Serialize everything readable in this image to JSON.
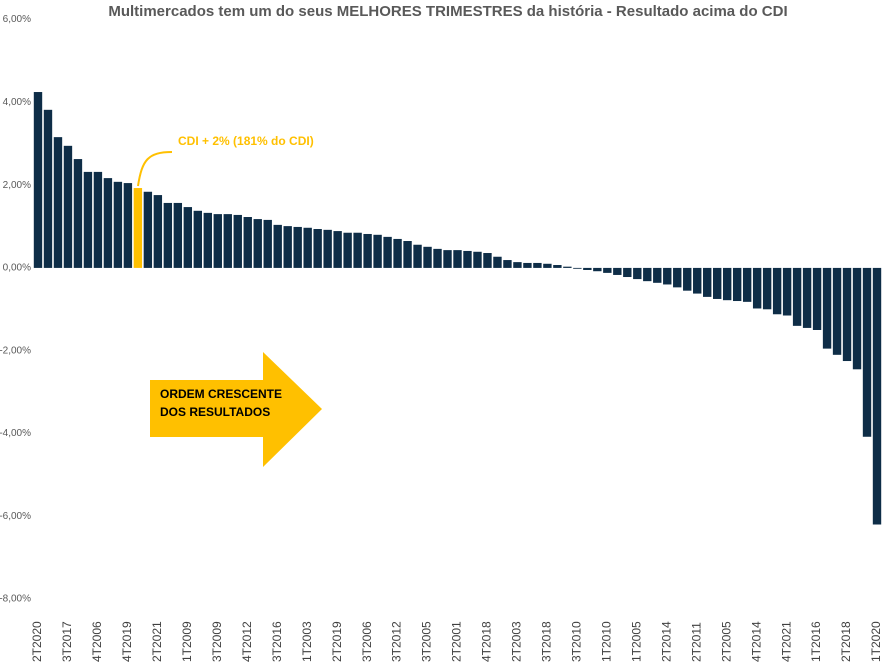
{
  "chart_data": {
    "type": "bar",
    "title": "Multimercados tem um do seus MELHORES TRIMESTRES  da história - Resultado acima do CDI",
    "categories": [
      "2T2020",
      null,
      null,
      "3T2017",
      null,
      null,
      "4T2006",
      null,
      null,
      "4T2019",
      null,
      null,
      "2T2021",
      null,
      null,
      "1T2009",
      null,
      null,
      "3T2009",
      null,
      null,
      "4T2012",
      null,
      null,
      "3T2016",
      null,
      null,
      "1T2003",
      null,
      null,
      "2T2019",
      null,
      null,
      "3T2006",
      null,
      null,
      "3T2012",
      null,
      null,
      "3T2005",
      null,
      null,
      "2T2001",
      null,
      null,
      "4T2018",
      null,
      null,
      "2T2003",
      null,
      null,
      "3T2018",
      null,
      null,
      "3T2010",
      null,
      null,
      "1T2010",
      null,
      null,
      "1T2005",
      null,
      null,
      "2T2014",
      null,
      null,
      "2T2011",
      null,
      null,
      "2T2005",
      null,
      null,
      "4T2014",
      null,
      null,
      "4T2021",
      null,
      null,
      "1T2016",
      null,
      null,
      "2T2018",
      null,
      null,
      "1T2020"
    ],
    "values": [
      4.25,
      3.82,
      3.16,
      2.95,
      2.63,
      2.32,
      2.32,
      2.17,
      2.08,
      2.05,
      1.93,
      1.84,
      1.76,
      1.57,
      1.57,
      1.47,
      1.38,
      1.33,
      1.3,
      1.3,
      1.28,
      1.23,
      1.18,
      1.16,
      1.04,
      1.01,
      0.99,
      0.97,
      0.94,
      0.92,
      0.89,
      0.85,
      0.85,
      0.82,
      0.8,
      0.75,
      0.7,
      0.65,
      0.56,
      0.51,
      0.46,
      0.43,
      0.43,
      0.41,
      0.39,
      0.36,
      0.27,
      0.19,
      0.14,
      0.12,
      0.12,
      0.1,
      0.07,
      0.03,
      -0.02,
      -0.05,
      -0.08,
      -0.12,
      -0.17,
      -0.22,
      -0.27,
      -0.32,
      -0.36,
      -0.4,
      -0.47,
      -0.55,
      -0.62,
      -0.7,
      -0.75,
      -0.78,
      -0.8,
      -0.82,
      -0.98,
      -1.0,
      -1.12,
      -1.15,
      -1.4,
      -1.45,
      -1.5,
      -1.95,
      -2.1,
      -2.25,
      -2.45,
      -4.08,
      -6.2
    ],
    "color": "#0e2d47",
    "highlight": {
      "index": 10,
      "color": "#ffc000"
    },
    "ylim": [
      -8,
      6
    ],
    "yticks": [
      {
        "value": -8,
        "label": "-8,00%"
      },
      {
        "value": -6,
        "label": "-6,00%"
      },
      {
        "value": -4,
        "label": "-4,00%"
      },
      {
        "value": -2,
        "label": "-2,00%"
      },
      {
        "value": 0,
        "label": "0,00%"
      },
      {
        "value": 2,
        "label": "2,00%"
      },
      {
        "value": 4,
        "label": "4,00%"
      },
      {
        "value": 6,
        "label": "6,00%"
      }
    ],
    "annotations": {
      "highlight_label": "CDI + 2% (181% do CDI)",
      "arrow_text": [
        "ORDEM CRESCENTE",
        "DOS RESULTADOS"
      ]
    }
  }
}
